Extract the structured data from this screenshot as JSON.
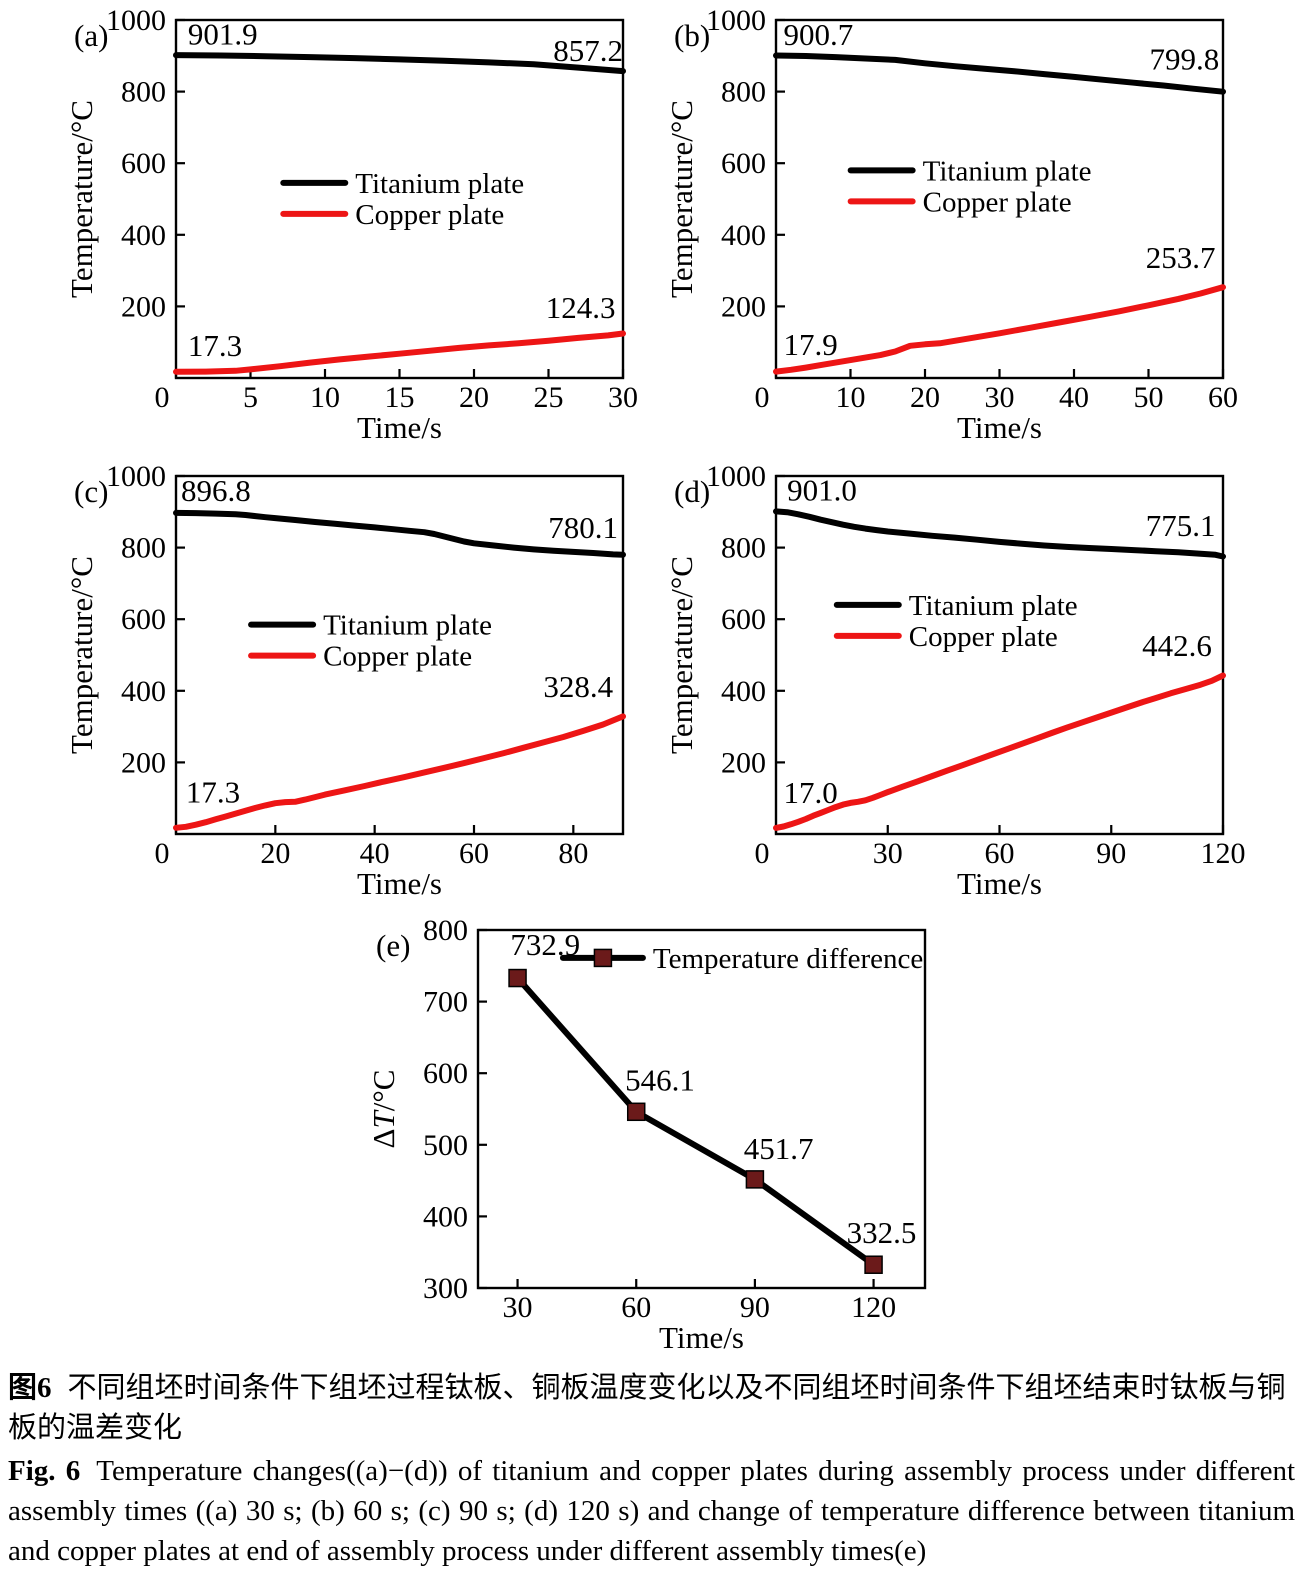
{
  "caption": {
    "zh_label": "图6",
    "zh_text": "不同组坯时间条件下组坯过程钛板、铜板温度变化以及不同组坯时间条件下组坯结束时钛板与铜板的温差变化",
    "en_label": "Fig. 6",
    "en_text": "Temperature changes((a)−(d)) of titanium and copper plates during assembly process under different assembly times ((a) 30 s; (b) 60 s; (c) 90 s; (d) 120 s) and change of temperature difference between titanium and copper plates at end of assembly process under different assembly times(e)"
  },
  "colors": {
    "titanium": "#000000",
    "copper": "#ed1515",
    "marker": "#6b1a1a",
    "frame": "#000000"
  },
  "chart_data": [
    {
      "panel": "(a)",
      "type": "line",
      "xlabel": "Time/s",
      "ylabel": "Temperature/°C",
      "xlim": [
        0,
        30
      ],
      "xticks": [
        0,
        5,
        10,
        15,
        20,
        25,
        30
      ],
      "ylim": [
        0,
        1000
      ],
      "yticks": [
        200,
        400,
        600,
        800,
        1000
      ],
      "legend": {
        "x": 0.24,
        "y": 0.455
      },
      "series": [
        {
          "name": "Titanium plate",
          "color": "titanium",
          "points": [
            [
              0,
              901.9
            ],
            [
              3,
              900.8
            ],
            [
              6,
              899
            ],
            [
              9,
              896.5
            ],
            [
              12,
              893.5
            ],
            [
              15,
              890
            ],
            [
              18,
              886
            ],
            [
              21,
              881.5
            ],
            [
              24,
              876.5
            ],
            [
              27,
              867
            ],
            [
              30,
              857.2
            ]
          ]
        },
        {
          "name": "Copper plate",
          "color": "copper",
          "points": [
            [
              0,
              17.3
            ],
            [
              2,
              17.8
            ],
            [
              4,
              20
            ],
            [
              5,
              24
            ],
            [
              7,
              33
            ],
            [
              9,
              43
            ],
            [
              11,
              52
            ],
            [
              13,
              60
            ],
            [
              15,
              68
            ],
            [
              17,
              76
            ],
            [
              19,
              84
            ],
            [
              21,
              91
            ],
            [
              23,
              97
            ],
            [
              25,
              104
            ],
            [
              27,
              112
            ],
            [
              29,
              119
            ],
            [
              30,
              124.3
            ]
          ]
        }
      ],
      "annotations": [
        {
          "text": "901.9",
          "x": 0.8,
          "y": 932,
          "anchor": "start"
        },
        {
          "text": "857.2",
          "x": 30,
          "y": 886,
          "anchor": "end"
        },
        {
          "text": "17.3",
          "x": 0.8,
          "y": 62,
          "anchor": "start"
        },
        {
          "text": "124.3",
          "x": 29.5,
          "y": 168,
          "anchor": "end"
        }
      ]
    },
    {
      "panel": "(b)",
      "type": "line",
      "xlabel": "Time/s",
      "ylabel": "Temperature/°C",
      "xlim": [
        0,
        60
      ],
      "xticks": [
        0,
        10,
        20,
        30,
        40,
        50,
        60
      ],
      "ylim": [
        0,
        1000
      ],
      "yticks": [
        200,
        400,
        600,
        800,
        1000
      ],
      "legend": {
        "x": 0.167,
        "y": 0.42
      },
      "series": [
        {
          "name": "Titanium plate",
          "color": "titanium",
          "points": [
            [
              0,
              900.7
            ],
            [
              4,
              899.5
            ],
            [
              8,
              896.5
            ],
            [
              12,
              892.5
            ],
            [
              16,
              888.5
            ],
            [
              20,
              879
            ],
            [
              24,
              871
            ],
            [
              28,
              864
            ],
            [
              32,
              857
            ],
            [
              36,
              849
            ],
            [
              40,
              841
            ],
            [
              44,
              833
            ],
            [
              48,
              825
            ],
            [
              52,
              817
            ],
            [
              56,
              808
            ],
            [
              60,
              799.8
            ]
          ]
        },
        {
          "name": "Copper plate",
          "color": "copper",
          "points": [
            [
              0,
              17.9
            ],
            [
              2,
              23
            ],
            [
              4,
              29
            ],
            [
              6,
              36
            ],
            [
              8,
              43
            ],
            [
              10,
              50
            ],
            [
              12,
              57
            ],
            [
              14,
              64
            ],
            [
              16,
              74
            ],
            [
              18,
              90
            ],
            [
              20,
              94
            ],
            [
              22,
              97
            ],
            [
              24,
              104
            ],
            [
              26,
              111
            ],
            [
              28,
              118
            ],
            [
              30,
              125
            ],
            [
              34,
              140
            ],
            [
              38,
              155
            ],
            [
              42,
              170
            ],
            [
              46,
              186
            ],
            [
              50,
              203
            ],
            [
              54,
              221
            ],
            [
              57,
              236
            ],
            [
              60,
              253.7
            ]
          ]
        }
      ],
      "annotations": [
        {
          "text": "900.7",
          "x": 1,
          "y": 930,
          "anchor": "start"
        },
        {
          "text": "799.8",
          "x": 59.5,
          "y": 862,
          "anchor": "end"
        },
        {
          "text": "17.9",
          "x": 1,
          "y": 64,
          "anchor": "start"
        },
        {
          "text": "253.7",
          "x": 59,
          "y": 307,
          "anchor": "end"
        }
      ]
    },
    {
      "panel": "(c)",
      "type": "line",
      "xlabel": "Time/s",
      "ylabel": "Temperature/°C",
      "xlim": [
        0,
        90
      ],
      "xticks": [
        0,
        20,
        40,
        60,
        80
      ],
      "ylim": [
        0,
        1000
      ],
      "yticks": [
        200,
        400,
        600,
        800,
        1000
      ],
      "legend": {
        "x": 0.168,
        "y": 0.415
      },
      "series": [
        {
          "name": "Titanium plate",
          "color": "titanium",
          "points": [
            [
              0,
              896.8
            ],
            [
              4,
              896.3
            ],
            [
              8,
              895
            ],
            [
              12,
              893
            ],
            [
              14,
              891
            ],
            [
              16,
              888
            ],
            [
              18,
              885
            ],
            [
              20,
              882.5
            ],
            [
              24,
              877
            ],
            [
              28,
              871.5
            ],
            [
              32,
              866.5
            ],
            [
              36,
              861.5
            ],
            [
              40,
              856.5
            ],
            [
              44,
              851
            ],
            [
              47,
              847
            ],
            [
              50,
              843
            ],
            [
              52,
              838
            ],
            [
              54,
              831
            ],
            [
              56,
              824
            ],
            [
              58,
              817
            ],
            [
              60,
              812
            ],
            [
              64,
              806
            ],
            [
              68,
              800
            ],
            [
              72,
              795
            ],
            [
              76,
              791
            ],
            [
              80,
              788
            ],
            [
              84,
              785
            ],
            [
              88,
              781
            ],
            [
              90,
              780.1
            ]
          ]
        },
        {
          "name": "Copper plate",
          "color": "copper",
          "points": [
            [
              0,
              17.3
            ],
            [
              2,
              20
            ],
            [
              4,
              26
            ],
            [
              6,
              33
            ],
            [
              8,
              41
            ],
            [
              10,
              49
            ],
            [
              12,
              57
            ],
            [
              14,
              65
            ],
            [
              16,
              73
            ],
            [
              18,
              80
            ],
            [
              20,
              86
            ],
            [
              22,
              89
            ],
            [
              24,
              90
            ],
            [
              26,
              96
            ],
            [
              28,
              103
            ],
            [
              30,
              110
            ],
            [
              34,
              122
            ],
            [
              38,
              134
            ],
            [
              42,
              147
            ],
            [
              46,
              159
            ],
            [
              50,
              172
            ],
            [
              54,
              185
            ],
            [
              58,
              198
            ],
            [
              62,
              212
            ],
            [
              66,
              226
            ],
            [
              70,
              241
            ],
            [
              74,
              256
            ],
            [
              78,
              271
            ],
            [
              82,
              288
            ],
            [
              86,
              306
            ],
            [
              90,
              328.4
            ]
          ]
        }
      ],
      "annotations": [
        {
          "text": "896.8",
          "x": 1,
          "y": 930,
          "anchor": "start"
        },
        {
          "text": "780.1",
          "x": 89,
          "y": 827,
          "anchor": "end"
        },
        {
          "text": "17.3",
          "x": 2,
          "y": 88,
          "anchor": "start"
        },
        {
          "text": "328.4",
          "x": 88,
          "y": 382,
          "anchor": "end"
        }
      ]
    },
    {
      "panel": "(d)",
      "type": "line",
      "xlabel": "Time/s",
      "ylabel": "Temperature/°C",
      "xlim": [
        0,
        120
      ],
      "xticks": [
        0,
        30,
        60,
        90,
        120
      ],
      "ylim": [
        0,
        1000
      ],
      "yticks": [
        200,
        400,
        600,
        800,
        1000
      ],
      "legend": {
        "x": 0.136,
        "y": 0.36
      },
      "series": [
        {
          "name": "Titanium plate",
          "color": "titanium",
          "points": [
            [
              0,
              901.0
            ],
            [
              3,
              899
            ],
            [
              6,
              893
            ],
            [
              9,
              886
            ],
            [
              12,
              878
            ],
            [
              15,
              871
            ],
            [
              18,
              864
            ],
            [
              21,
              858
            ],
            [
              24,
              853
            ],
            [
              27,
              849
            ],
            [
              30,
              845
            ],
            [
              36,
              839
            ],
            [
              42,
              833
            ],
            [
              48,
              828
            ],
            [
              54,
              822
            ],
            [
              60,
              816
            ],
            [
              66,
              811
            ],
            [
              72,
              806
            ],
            [
              78,
              802
            ],
            [
              84,
              799
            ],
            [
              90,
              796
            ],
            [
              96,
              793
            ],
            [
              102,
              790
            ],
            [
              108,
              787
            ],
            [
              114,
              783
            ],
            [
              118,
              780
            ],
            [
              120,
              775.1
            ]
          ]
        },
        {
          "name": "Copper plate",
          "color": "copper",
          "points": [
            [
              0,
              17.0
            ],
            [
              2,
              21
            ],
            [
              4,
              27
            ],
            [
              6,
              34
            ],
            [
              8,
              42
            ],
            [
              10,
              51
            ],
            [
              12,
              59
            ],
            [
              14,
              67
            ],
            [
              16,
              75
            ],
            [
              18,
              82
            ],
            [
              20,
              87
            ],
            [
              22,
              90
            ],
            [
              24,
              94
            ],
            [
              26,
              101
            ],
            [
              28,
              109
            ],
            [
              30,
              117
            ],
            [
              34,
              132
            ],
            [
              38,
              147
            ],
            [
              42,
              162
            ],
            [
              46,
              177
            ],
            [
              50,
              192
            ],
            [
              54,
              207
            ],
            [
              58,
              222
            ],
            [
              62,
              237
            ],
            [
              66,
              252
            ],
            [
              70,
              267
            ],
            [
              74,
              282
            ],
            [
              78,
              297
            ],
            [
              82,
              311
            ],
            [
              86,
              325
            ],
            [
              90,
              339
            ],
            [
              94,
              353
            ],
            [
              98,
              367
            ],
            [
              102,
              380
            ],
            [
              106,
              393
            ],
            [
              110,
              405
            ],
            [
              114,
              417
            ],
            [
              117,
              428
            ],
            [
              120,
              442.6
            ]
          ]
        }
      ],
      "annotations": [
        {
          "text": "901.0",
          "x": 3,
          "y": 932,
          "anchor": "start"
        },
        {
          "text": "775.1",
          "x": 118,
          "y": 832,
          "anchor": "end"
        },
        {
          "text": "17.0",
          "x": 2,
          "y": 86,
          "anchor": "start"
        },
        {
          "text": "442.6",
          "x": 117,
          "y": 497,
          "anchor": "end"
        }
      ]
    },
    {
      "panel": "(e)",
      "type": "line",
      "xlabel": "Time/s",
      "ylabel": "ΔT/°C",
      "xlim": [
        20,
        133
      ],
      "xticks": [
        30,
        60,
        90,
        120
      ],
      "ylim": [
        300,
        800
      ],
      "yticks": [
        300,
        400,
        500,
        600,
        700,
        800
      ],
      "legend": {
        "x": 0.19,
        "y": 0.078
      },
      "series": [
        {
          "name": "Temperature difference",
          "color": "titanium",
          "marker": {
            "shape": "square",
            "size": 17,
            "fill": "marker"
          },
          "points": [
            [
              30,
              732.9
            ],
            [
              60,
              546.1
            ],
            [
              90,
              451.7
            ],
            [
              120,
              332.5
            ]
          ]
        }
      ],
      "annotations": [
        {
          "text": "732.9",
          "x": 37,
          "y": 765,
          "anchor": "middle"
        },
        {
          "text": "546.1",
          "x": 66,
          "y": 576,
          "anchor": "middle"
        },
        {
          "text": "451.7",
          "x": 96,
          "y": 480,
          "anchor": "middle"
        },
        {
          "text": "332.5",
          "x": 122,
          "y": 363,
          "anchor": "middle"
        }
      ]
    }
  ]
}
